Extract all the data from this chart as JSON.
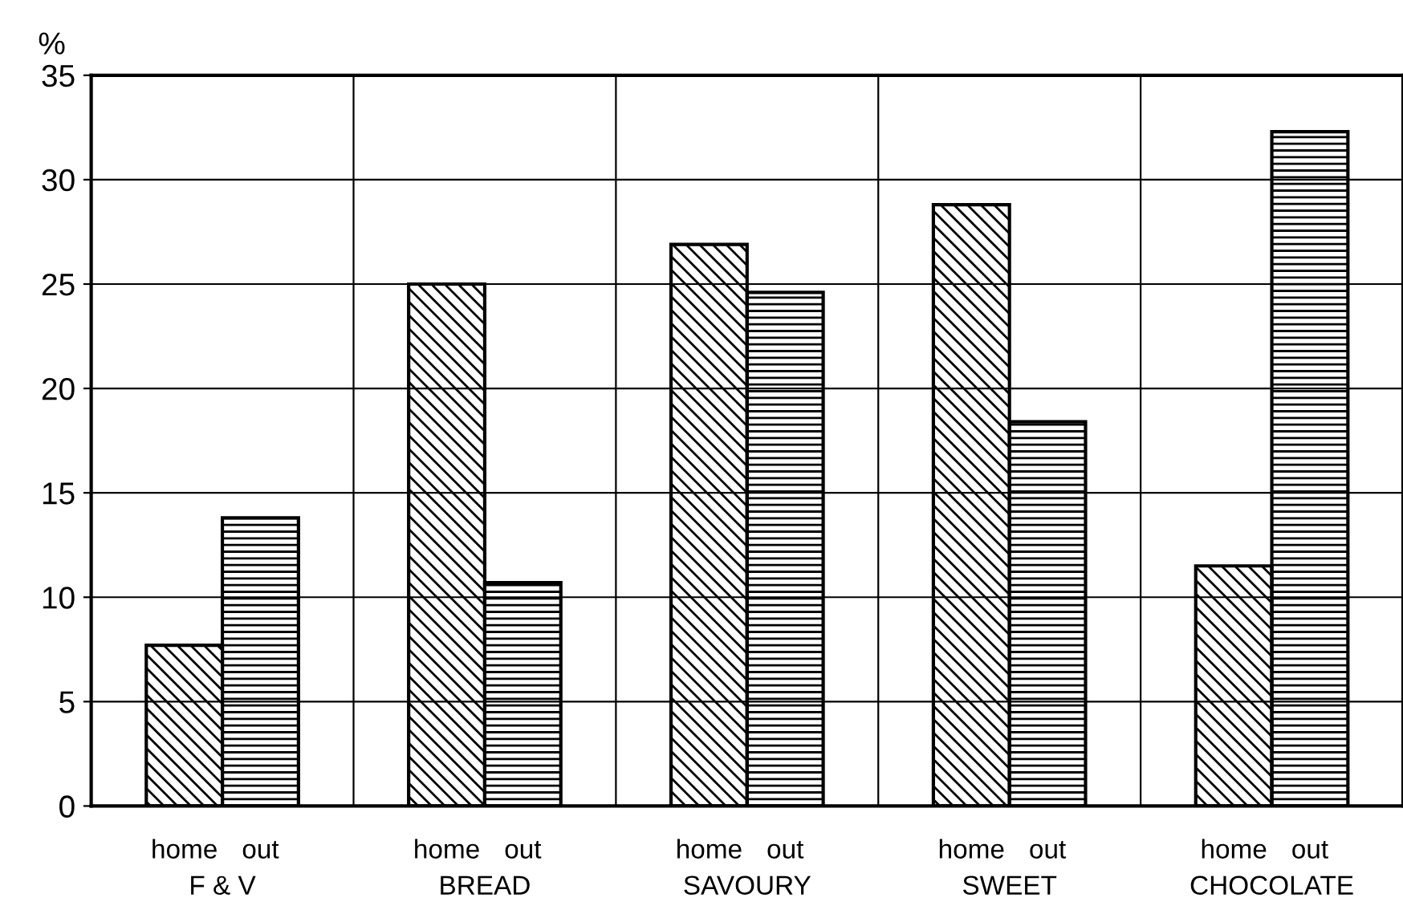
{
  "chart_data": {
    "type": "bar",
    "ylabel": "%",
    "categories": [
      "F & V",
      "BREAD",
      "SAVOURY",
      "SWEET",
      "CHOCOLATE"
    ],
    "series": [
      {
        "name": "home",
        "color": "#000000",
        "values": [
          7.7,
          25.0,
          26.9,
          28.8,
          11.5
        ]
      },
      {
        "name": "out",
        "color": "#000000",
        "values": [
          13.8,
          10.7,
          24.6,
          18.4,
          32.3
        ]
      }
    ],
    "ylim": [
      0,
      35
    ],
    "yticks": [
      0,
      5,
      10,
      15,
      20,
      25,
      30,
      35
    ],
    "grid": true,
    "legend": false
  }
}
